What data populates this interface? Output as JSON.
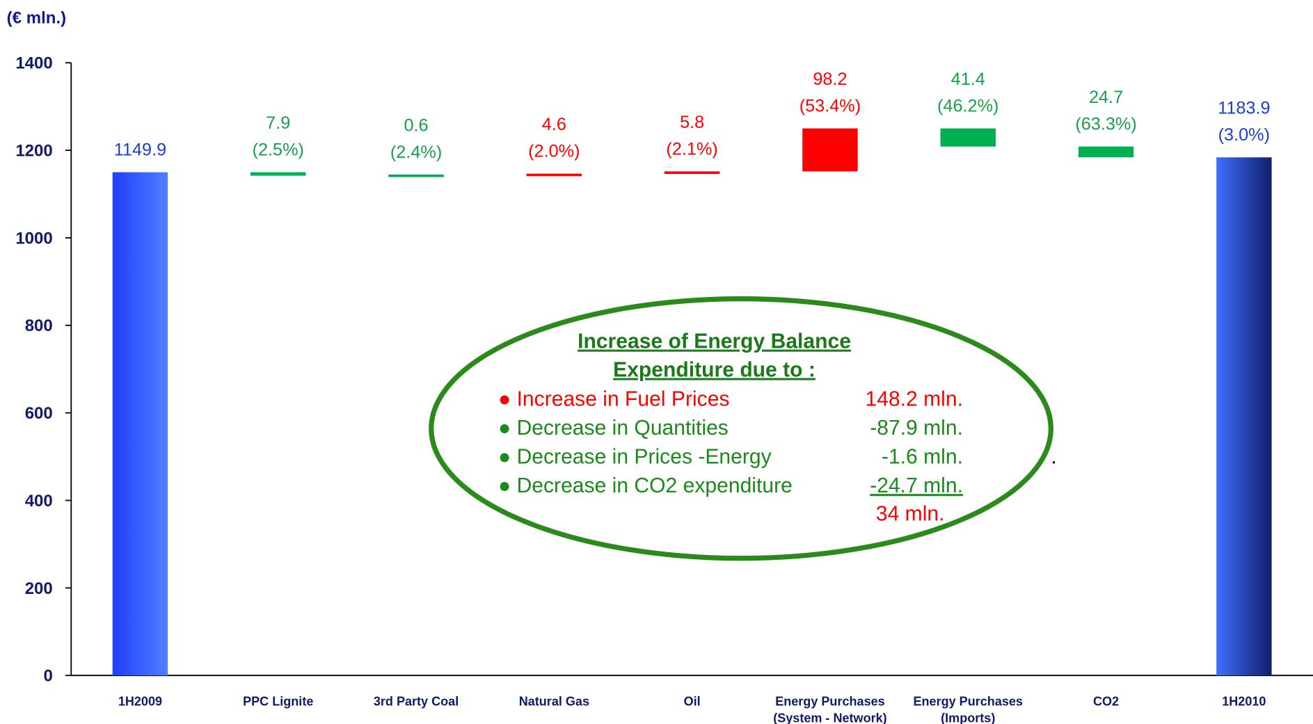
{
  "chart_data": {
    "type": "waterfall",
    "y_axis_label": "(€ mln.)",
    "categories": [
      "1H2009",
      "PPC Lignite",
      "3rd Party Coal",
      "Natural Gas",
      "Oil",
      "Energy Purchases (System - Network)",
      "Energy Purchases (Imports)",
      "CO2",
      "1H2010"
    ],
    "values": [
      1149.9,
      -7.9,
      -0.6,
      4.6,
      5.8,
      98.2,
      -41.4,
      -24.7,
      1183.9
    ],
    "value_labels": [
      "1149.9",
      "7.9",
      "0.6",
      "4.6",
      "5.8",
      "98.2",
      "41.4",
      "24.7",
      "1183.9"
    ],
    "percent_labels": [
      null,
      "(2.5%)",
      "(2.4%)",
      "(2.0%)",
      "(2.1%)",
      "(53.4%)",
      "(46.2%)",
      "(63.3%)",
      "(3.0%)"
    ],
    "totals": [
      true,
      false,
      false,
      false,
      false,
      false,
      false,
      false,
      true
    ],
    "colors": {
      "total": "#2f5bff",
      "increase": "#ff0000",
      "decrease": "#00b050"
    },
    "ylim": [
      0,
      1400
    ],
    "yticks": [
      0,
      200,
      400,
      600,
      800,
      1000,
      1200,
      1400
    ],
    "annotation": {
      "title": [
        "Increase of Energy Balance",
        "Expenditure due to :"
      ],
      "items": [
        {
          "text": "● Increase in Fuel Prices",
          "amount": "148.2 mln.",
          "color": "#ff0000"
        },
        {
          "text": "● Decrease in Quantities",
          "amount": "-87.9 mln.",
          "color": "#1a8a1a"
        },
        {
          "text": "● Decrease in Prices -Energy",
          "amount": "-1.6 mln.",
          "color": "#1a8a1a"
        },
        {
          "text": "● Decrease in CO2 expenditure",
          "amount": "-24.7 mln.",
          "color": "#1a8a1a"
        }
      ],
      "total": "34 mln.",
      "stray": "."
    }
  }
}
